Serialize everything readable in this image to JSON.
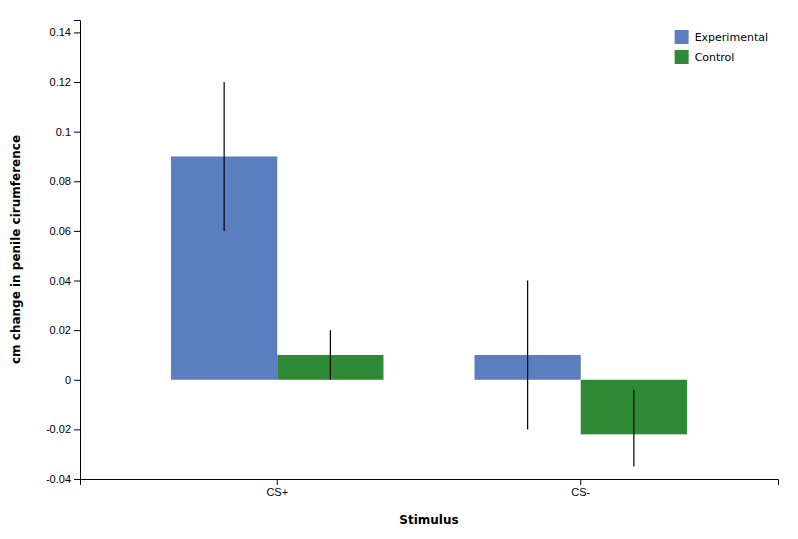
{
  "chart_data": {
    "type": "bar",
    "categories": [
      "CS+",
      "CS-"
    ],
    "xlabel": "Stimulus",
    "ylabel": "cm change in penile cirumference",
    "series": [
      {
        "name": "Experimental",
        "color": "#5B7FBE",
        "values": [
          0.09,
          0.01
        ],
        "error_up": [
          0.03,
          0.03
        ],
        "error_down": [
          0.03,
          0.03
        ]
      },
      {
        "name": "Control",
        "color": "#2E8A35",
        "values": [
          0.01,
          -0.022
        ],
        "error_up": [
          0.01,
          0.018
        ],
        "error_down": [
          0.01,
          0.013
        ]
      }
    ],
    "ylim": [
      -0.04,
      0.145
    ],
    "yticks": [
      -0.04,
      -0.02,
      0,
      0.02,
      0.04,
      0.06,
      0.08,
      0.1,
      0.12,
      0.14
    ],
    "legend": "upper right",
    "grid": false
  }
}
